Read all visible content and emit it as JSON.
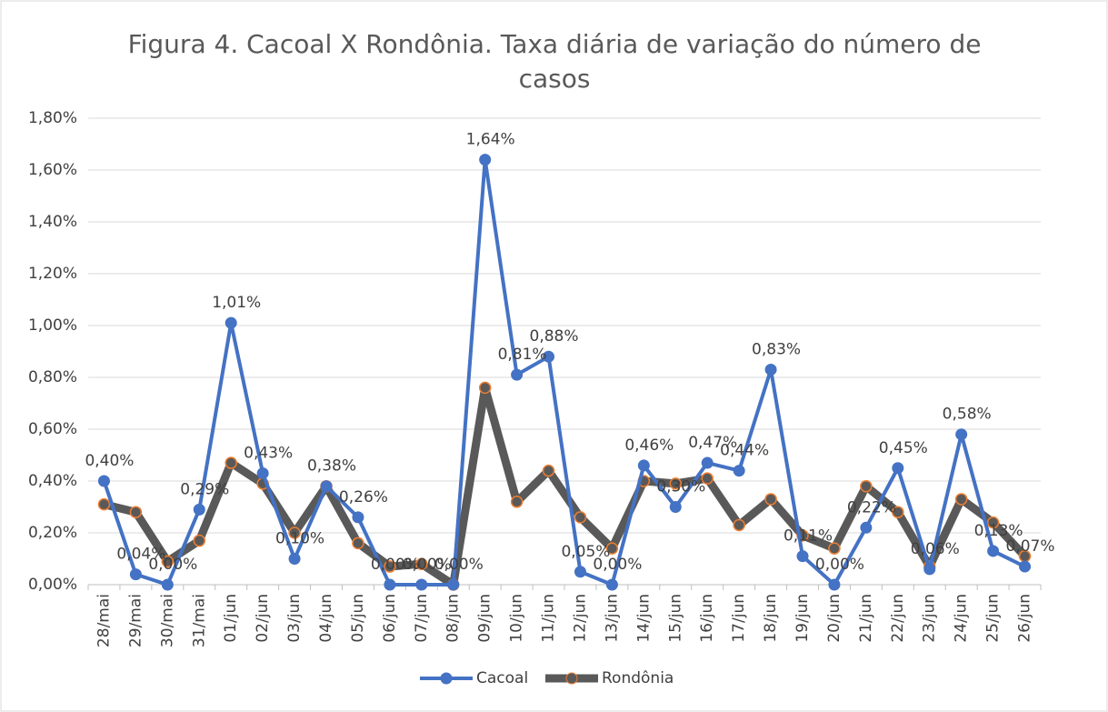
{
  "chart_data": {
    "type": "line",
    "title": "Figura 4. Cacoal X Rondônia. Taxa diária de variação do número de casos",
    "categories": [
      "28/mai",
      "29/mai",
      "30/mai",
      "31/mai",
      "01/jun",
      "02/jun",
      "03/jun",
      "04/jun",
      "05/jun",
      "06/jun",
      "07/jun",
      "08/jun",
      "09/jun",
      "10/jun",
      "11/jun",
      "12/jun",
      "13/jun",
      "14/jun",
      "15/jun",
      "16/jun",
      "17/jun",
      "18/jun",
      "19/jun",
      "20/jun",
      "21/jun",
      "22/jun",
      "23/jun",
      "24/jun",
      "25/jun",
      "26/jun"
    ],
    "series": [
      {
        "name": "Cacoal",
        "color": "#4472c4",
        "values": [
          0.4,
          0.04,
          0.0,
          0.29,
          1.01,
          0.43,
          0.1,
          0.38,
          0.26,
          0.0,
          0.0,
          0.0,
          1.64,
          0.81,
          0.88,
          0.05,
          0.0,
          0.46,
          0.3,
          0.47,
          0.44,
          0.83,
          0.11,
          0.0,
          0.22,
          0.45,
          0.06,
          0.58,
          0.13,
          0.07
        ],
        "value_labels": [
          "0,40%",
          "0,04%",
          "0,00%",
          "0,29%",
          "1,01%",
          "0,43%",
          "0,10%",
          "0,38%",
          "0,26%",
          "0,00%",
          "0,00%",
          "0,00%",
          "1,64%",
          "0,81%",
          "0,88%",
          "0,05%",
          "0,00%",
          "0,46%",
          "0,30%",
          "0,47%",
          "0,44%",
          "0,83%",
          "0,11%",
          "0,00%",
          "0,22%",
          "0,45%",
          "0,06%",
          "0,58%",
          "0,13%",
          "0,07%"
        ]
      },
      {
        "name": "Rondônia",
        "color": "#595959",
        "marker_edge": "#ed7d31",
        "values": [
          0.31,
          0.28,
          0.09,
          0.17,
          0.47,
          0.39,
          0.2,
          0.38,
          0.16,
          0.07,
          0.08,
          0.0,
          0.76,
          0.32,
          0.44,
          0.26,
          0.14,
          0.4,
          0.39,
          0.41,
          0.23,
          0.33,
          0.19,
          0.14,
          0.38,
          0.28,
          0.07,
          0.33,
          0.24,
          0.11
        ]
      }
    ],
    "ylim": [
      0,
      1.8
    ],
    "yticks": [
      {
        "value": 0,
        "label": "0,00%"
      },
      {
        "value": 0.2,
        "label": "0,20%"
      },
      {
        "value": 0.4,
        "label": "0,40%"
      },
      {
        "value": 0.6,
        "label": "0,60%"
      },
      {
        "value": 0.8,
        "label": "0,80%"
      },
      {
        "value": 1.0,
        "label": "1,00%"
      },
      {
        "value": 1.2,
        "label": "1,20%"
      },
      {
        "value": 1.4,
        "label": "1,40%"
      },
      {
        "value": 1.6,
        "label": "1,60%"
      },
      {
        "value": 1.8,
        "label": "1,80%"
      }
    ],
    "grid": true,
    "legend": "bottom"
  }
}
